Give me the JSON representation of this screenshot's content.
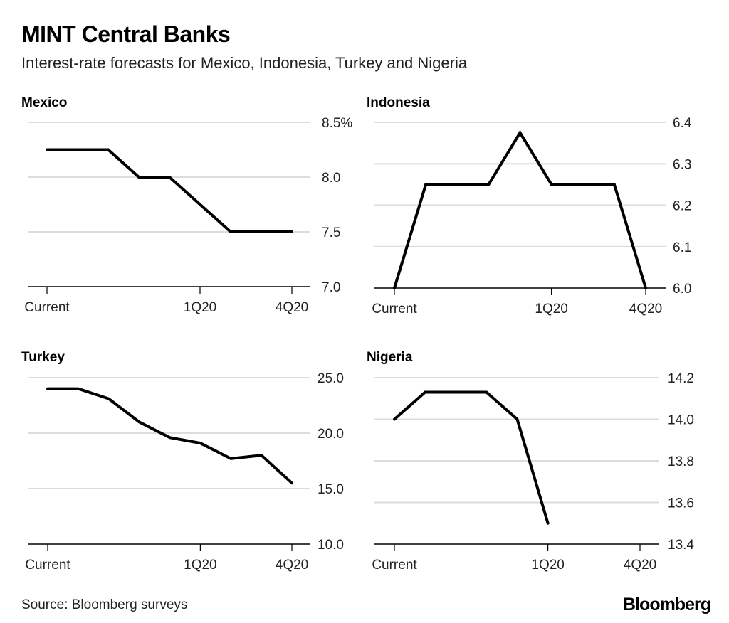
{
  "title": "MINT Central Banks",
  "subtitle": "Interest-rate forecasts for Mexico, Indonesia, Turkey and Nigeria",
  "source": "Source: Bloomberg surveys",
  "logo": "Bloomberg",
  "chart_data": [
    {
      "type": "line",
      "title": "Mexico",
      "x": [
        0,
        1,
        2,
        3,
        4,
        5,
        6,
        7,
        8
      ],
      "x_tick_labels": {
        "0": "Current",
        "5": "1Q20",
        "8": "4Q20"
      },
      "values": [
        8.25,
        8.25,
        8.25,
        8.0,
        8.0,
        7.75,
        7.5,
        7.5,
        7.5
      ],
      "ylim": [
        7.0,
        8.5
      ],
      "y_ticks": [
        7.0,
        7.5,
        8.0,
        8.5
      ],
      "y_tick_labels": [
        "7.0",
        "7.5",
        "8.0",
        "8.5%"
      ],
      "grid": true,
      "color": "#000000"
    },
    {
      "type": "line",
      "title": "Indonesia",
      "x": [
        0,
        1,
        2,
        3,
        4,
        5,
        6,
        7,
        8
      ],
      "x_tick_labels": {
        "0": "Current",
        "5": "1Q20",
        "8": "4Q20"
      },
      "values": [
        6.0,
        6.25,
        6.25,
        6.25,
        6.375,
        6.25,
        6.25,
        6.25,
        6.0
      ],
      "ylim": [
        6.0,
        6.4
      ],
      "y_ticks": [
        6.0,
        6.1,
        6.2,
        6.3,
        6.4
      ],
      "y_tick_labels": [
        "6.0",
        "6.1",
        "6.2",
        "6.3",
        "6.4"
      ],
      "grid": true,
      "color": "#000000"
    },
    {
      "type": "line",
      "title": "Turkey",
      "x": [
        0,
        1,
        2,
        3,
        4,
        5,
        6,
        7,
        8
      ],
      "x_tick_labels": {
        "0": "Current",
        "5": "1Q20",
        "8": "4Q20"
      },
      "values": [
        24.0,
        24.0,
        23.1,
        21.0,
        19.6,
        19.1,
        17.7,
        18.0,
        15.5
      ],
      "ylim": [
        10.0,
        25.0
      ],
      "y_ticks": [
        10,
        15,
        20,
        25
      ],
      "y_tick_labels": [
        "10.0",
        "15.0",
        "20.0",
        "25.0"
      ],
      "grid": true,
      "color": "#000000"
    },
    {
      "type": "line",
      "title": "Nigeria",
      "x": [
        0,
        1,
        2,
        3,
        4,
        5
      ],
      "x_tick_labels": {
        "0": "Current",
        "5": "1Q20",
        "8": "4Q20"
      },
      "values": [
        14.0,
        14.13,
        14.13,
        14.13,
        14.0,
        13.5
      ],
      "ylim": [
        13.4,
        14.2
      ],
      "y_ticks": [
        13.4,
        13.6,
        13.8,
        14.0,
        14.2
      ],
      "y_tick_labels": [
        "13.4",
        "13.6",
        "13.8",
        "14.0",
        "14.2"
      ],
      "grid": true,
      "color": "#000000"
    }
  ]
}
